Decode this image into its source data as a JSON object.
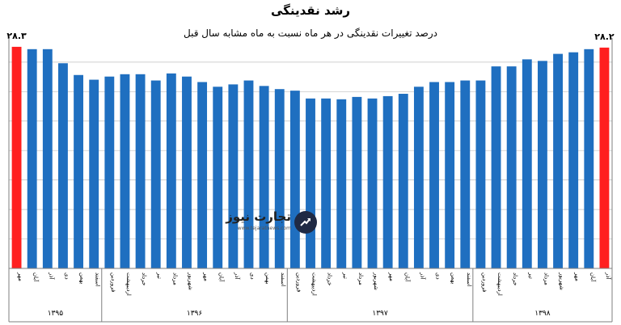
{
  "chart_data": {
    "type": "bar",
    "title": "رشد نقدینگی",
    "subtitle": "درصد تغییرات نقدینگی در هر ماه نسبت به ماه مشابه سال قبل",
    "xlabel": "",
    "ylabel": "",
    "ylim": [
      0,
      28.6
    ],
    "grid": true,
    "categories": [
      "مهر",
      "آبان",
      "آذر",
      "دی",
      "بهمن",
      "اسفند",
      "فروردین",
      "اردیبهشت",
      "خرداد",
      "تیر",
      "مرداد",
      "شهریور",
      "مهر",
      "آبان",
      "آذر",
      "دی",
      "بهمن",
      "اسفند",
      "فروردین",
      "اردیبهشت",
      "خرداد",
      "تیر",
      "مرداد",
      "شهریور",
      "مهر",
      "آبان",
      "آذر",
      "دی",
      "بهمن",
      "اسفند",
      "فروردین",
      "اردیبهشت",
      "خرداد",
      "تیر",
      "مرداد",
      "شهریور",
      "مهر",
      "آبان",
      "آذر"
    ],
    "values": [
      28.3,
      28.0,
      28.0,
      26.2,
      24.7,
      24.1,
      24.5,
      24.8,
      24.8,
      24.0,
      24.9,
      24.5,
      23.8,
      23.2,
      23.5,
      24.0,
      23.3,
      22.9,
      22.7,
      21.7,
      21.7,
      21.6,
      21.9,
      21.7,
      22.0,
      22.3,
      23.2,
      23.8,
      23.8,
      24.0,
      24.0,
      25.8,
      25.8,
      26.7,
      26.5,
      27.4,
      27.6,
      28.0,
      28.2
    ],
    "highlight": [
      {
        "index": 0,
        "label": "۲۸.۳"
      },
      {
        "index": 38,
        "label": "۲۸.۲"
      }
    ],
    "year_groups": [
      {
        "label": "۱۳۹۵",
        "count": 6
      },
      {
        "label": "۱۳۹۶",
        "count": 12
      },
      {
        "label": "۱۳۹۷",
        "count": 12
      },
      {
        "label": "۱۳۹۸",
        "count": 9
      }
    ],
    "colors": {
      "bar": "#1f6fc0",
      "highlight": "#ff1f1f",
      "grid": "#bfbfbf",
      "axis": "#7f7f7f"
    }
  },
  "logo": {
    "name": "تجارت نیوز",
    "url": "www.tejaratnews.com"
  }
}
